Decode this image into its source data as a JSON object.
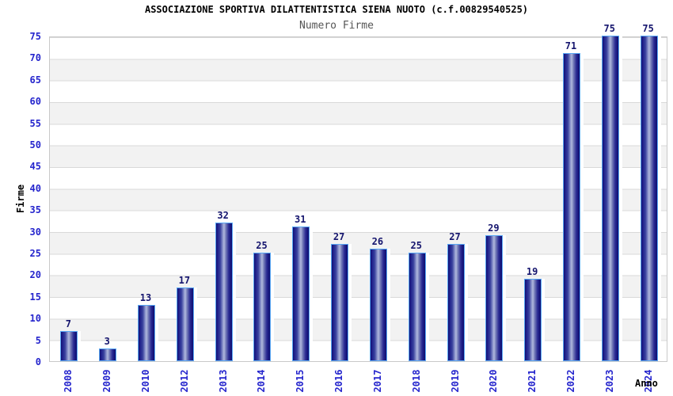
{
  "title": "ASSOCIAZIONE SPORTIVA DILATTENTISTICA SIENA NUOTO (c.f.00829540525)",
  "subtitle": "Numero Firme",
  "chart_data": {
    "type": "bar",
    "title": "ASSOCIAZIONE SPORTIVA DILATTENTISTICA SIENA NUOTO (c.f.00829540525)",
    "subtitle": "Numero Firme",
    "categories": [
      "2008",
      "2009",
      "2010",
      "2012",
      "2013",
      "2014",
      "2015",
      "2016",
      "2017",
      "2018",
      "2019",
      "2020",
      "2021",
      "2022",
      "2023",
      "2024"
    ],
    "values": [
      7,
      3,
      13,
      17,
      32,
      25,
      31,
      27,
      26,
      25,
      27,
      29,
      19,
      71,
      75,
      75
    ],
    "xlabel": "Anno",
    "ylabel": "Firme",
    "ylim": [
      0,
      75
    ],
    "ytick_step": 5,
    "grid": "horizontal-bands-every-5",
    "legend": "none",
    "band_colors": [
      "#ffffff",
      "#f2f2f2"
    ]
  },
  "colors": {
    "tick_label_blue": "#2525cd",
    "value_label_navy": "#15156e",
    "bar_border_lightblue": "#59a8f5",
    "bar_body_navy": "#1c1c8e",
    "bar_highlight": "#b0b8dd",
    "band_gray": "#f2f2f2",
    "grid_line": "#d9d9d9",
    "plot_border": "#c9c9c9",
    "subtitle_gray": "#555555",
    "title_black": "#000000",
    "background": "#ffffff"
  }
}
